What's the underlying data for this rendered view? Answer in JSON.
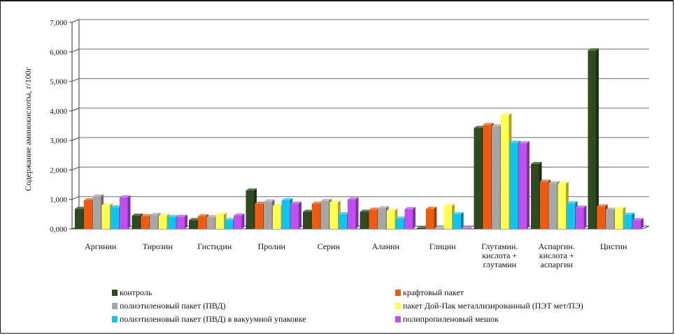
{
  "chart_data": {
    "type": "bar",
    "ylabel": "Содержание аминокислоты, г/100г",
    "ylim": [
      0,
      7
    ],
    "yticks": [
      "0,000",
      "1,000",
      "2,000",
      "3,000",
      "4,000",
      "5,000",
      "6,000",
      "7,000"
    ],
    "grid": true,
    "legend_position": "bottom",
    "categories": [
      [
        "Аргинин"
      ],
      [
        "Тирозин"
      ],
      [
        "Гистидин"
      ],
      [
        "Пролин"
      ],
      [
        "Серин"
      ],
      [
        "Аланин"
      ],
      [
        "Глицин"
      ],
      [
        "Глутамин.",
        "кислота +",
        "глутамин"
      ],
      [
        "Аспаргин.",
        "кислота +",
        "аспаргин"
      ],
      [
        "Цистин"
      ]
    ],
    "series": [
      {
        "name": "контроль",
        "color": "#2e4a1e",
        "values": [
          0.68,
          0.45,
          0.3,
          1.3,
          0.58,
          0.58,
          0.03,
          3.42,
          2.2,
          6.05
        ]
      },
      {
        "name": "крафтовый пакет",
        "color": "#f05a0f",
        "values": [
          0.97,
          0.43,
          0.43,
          0.85,
          0.85,
          0.65,
          0.68,
          3.52,
          1.6,
          0.76
        ]
      },
      {
        "name": "полиэтиленовый пакет (ПВД)",
        "color": "#a6a6a6",
        "values": [
          1.1,
          0.47,
          0.4,
          0.93,
          0.95,
          0.7,
          0.02,
          3.48,
          1.55,
          0.65
        ]
      },
      {
        "name": "пакет Дой-Пак металлизированный (ПЭТ мет/ПЭ)",
        "color": "#ffff4d",
        "values": [
          0.8,
          0.45,
          0.48,
          0.78,
          0.9,
          0.62,
          0.78,
          3.85,
          1.53,
          0.68
        ]
      },
      {
        "name": "полиэтиленовый пакет (ПВД) в вакуумной упаковке",
        "color": "#10c4f0",
        "values": [
          0.73,
          0.4,
          0.3,
          0.97,
          0.5,
          0.35,
          0.5,
          2.92,
          0.87,
          0.48
        ]
      },
      {
        "name": "полипропиленовый мешок",
        "color": "#c04ef0",
        "values": [
          1.07,
          0.41,
          0.45,
          0.85,
          1.0,
          0.67,
          0.02,
          2.9,
          0.72,
          0.3
        ]
      }
    ]
  }
}
